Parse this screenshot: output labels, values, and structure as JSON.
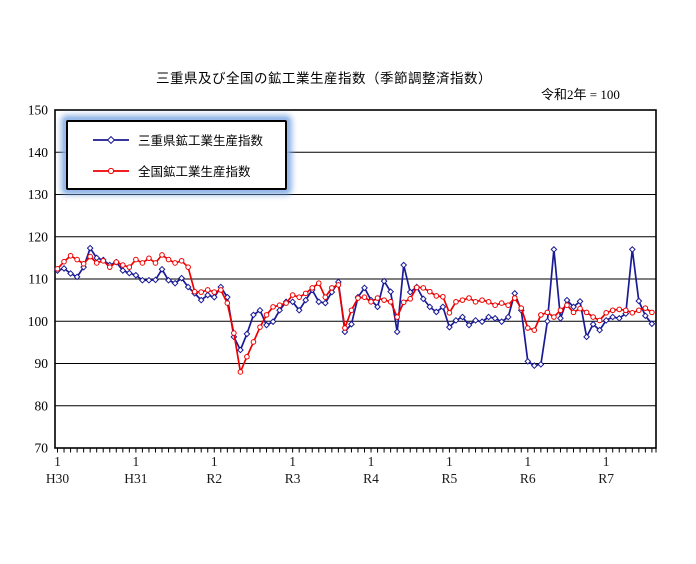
{
  "title": "三重県及び全国の鉱工業生産指数（季節調整済指数）",
  "note": "令和2年 = 100",
  "legend": {
    "position": "top-left-inside",
    "highlighted": true
  },
  "chart_data": {
    "type": "line",
    "title": "三重県及び全国の鉱工業生産指数（季節調整済指数）",
    "subtitle": "令和2年 = 100",
    "ylim": [
      70,
      150
    ],
    "y_ticks": [
      70,
      80,
      90,
      100,
      110,
      120,
      130,
      140,
      150
    ],
    "grid": "horizontal",
    "x_frequency": "monthly",
    "x_january_labels": [
      {
        "index": 0,
        "month": "1",
        "year": "H30"
      },
      {
        "index": 12,
        "month": "1",
        "year": "H31"
      },
      {
        "index": 24,
        "month": "1",
        "year": "R2"
      },
      {
        "index": 36,
        "month": "1",
        "year": "R3"
      },
      {
        "index": 48,
        "month": "1",
        "year": "R4"
      },
      {
        "index": 60,
        "month": "1",
        "year": "R5"
      },
      {
        "index": 72,
        "month": "1",
        "year": "R6"
      },
      {
        "index": 84,
        "month": "1",
        "year": "R7"
      }
    ],
    "months": [
      "H30.1",
      "H30.2",
      "H30.3",
      "H30.4",
      "H30.5",
      "H30.6",
      "H30.7",
      "H30.8",
      "H30.9",
      "H30.10",
      "H30.11",
      "H30.12",
      "H31.1",
      "H31.2",
      "H31.3",
      "H31.4",
      "H31.5",
      "H31.6",
      "H31.7",
      "H31.8",
      "H31.9",
      "H31.10",
      "H31.11",
      "H31.12",
      "R2.1",
      "R2.2",
      "R2.3",
      "R2.4",
      "R2.5",
      "R2.6",
      "R2.7",
      "R2.8",
      "R2.9",
      "R2.10",
      "R2.11",
      "R2.12",
      "R3.1",
      "R3.2",
      "R3.3",
      "R3.4",
      "R3.5",
      "R3.6",
      "R3.7",
      "R3.8",
      "R3.9",
      "R3.10",
      "R3.11",
      "R3.12",
      "R4.1",
      "R4.2",
      "R4.3",
      "R4.4",
      "R4.5",
      "R4.6",
      "R4.7",
      "R4.8",
      "R4.9",
      "R4.10",
      "R4.11",
      "R4.12",
      "R5.1",
      "R5.2",
      "R5.3",
      "R5.4",
      "R5.5",
      "R5.6",
      "R5.7",
      "R5.8",
      "R5.9",
      "R5.10",
      "R5.11",
      "R5.12",
      "R6.1",
      "R6.2",
      "R6.3",
      "R6.4",
      "R6.5",
      "R6.6",
      "R6.7",
      "R6.8",
      "R6.9",
      "R6.10",
      "R6.11",
      "R6.12",
      "R7.1",
      "R7.2",
      "R7.3",
      "R7.4",
      "R7.5",
      "R7.6",
      "R7.7",
      "R7.8"
    ],
    "series": [
      {
        "name": "三重県鉱工業生産指数",
        "color": "#1a1a96",
        "marker": "diamond",
        "values": [
          112.0,
          112.5,
          111.3,
          110.5,
          112.8,
          117.3,
          115.0,
          114.5,
          113.3,
          114.0,
          112.0,
          111.4,
          110.9,
          109.7,
          109.7,
          109.8,
          112.3,
          109.7,
          109.0,
          110.2,
          108.1,
          106.6,
          105.0,
          106.2,
          105.7,
          108.1,
          105.7,
          96.3,
          93.2,
          97.0,
          101.5,
          102.6,
          99.1,
          99.9,
          102.6,
          104.6,
          104.6,
          102.6,
          105.0,
          107.4,
          104.6,
          104.3,
          106.9,
          109.3,
          97.5,
          99.3,
          105.7,
          107.9,
          105.0,
          103.4,
          109.5,
          107.0,
          97.5,
          113.3,
          106.9,
          108.1,
          105.3,
          103.4,
          102.2,
          103.4,
          98.6,
          100.2,
          101.0,
          99.1,
          100.2,
          99.9,
          101.0,
          100.7,
          99.9,
          101.0,
          106.6,
          102.6,
          90.5,
          89.5,
          89.8,
          100.0,
          117.0,
          100.7,
          105.0,
          103.4,
          104.7,
          96.3,
          99.3,
          97.9,
          100.2,
          101.0,
          100.7,
          101.8,
          117.0,
          104.8,
          101.3,
          99.4
        ]
      },
      {
        "name": "全国鉱工業生産指数",
        "color": "#ee0000",
        "marker": "circle",
        "values": [
          112.4,
          114.1,
          115.5,
          114.6,
          113.6,
          115.3,
          113.8,
          114.3,
          112.8,
          114.0,
          113.3,
          112.8,
          114.6,
          113.8,
          114.9,
          113.8,
          115.7,
          114.6,
          113.8,
          114.3,
          112.8,
          107.0,
          106.9,
          107.4,
          106.9,
          107.4,
          104.3,
          97.2,
          88.0,
          91.6,
          95.1,
          98.6,
          101.5,
          103.4,
          103.8,
          104.3,
          106.2,
          105.7,
          106.6,
          107.9,
          109.0,
          105.7,
          107.9,
          108.6,
          98.4,
          102.6,
          105.5,
          105.7,
          104.6,
          105.5,
          105.0,
          104.6,
          101.0,
          104.5,
          105.3,
          108.0,
          107.9,
          107.0,
          106.0,
          105.8,
          102.0,
          104.6,
          105.0,
          105.5,
          104.6,
          105.0,
          104.6,
          103.8,
          104.3,
          103.8,
          105.5,
          103.1,
          98.4,
          97.9,
          101.5,
          102.1,
          101.0,
          102.6,
          103.8,
          102.1,
          103.0,
          102.1,
          101.0,
          100.2,
          102.0,
          102.6,
          102.8,
          102.6,
          102.0,
          102.6,
          103.1,
          102.1
        ]
      }
    ]
  }
}
